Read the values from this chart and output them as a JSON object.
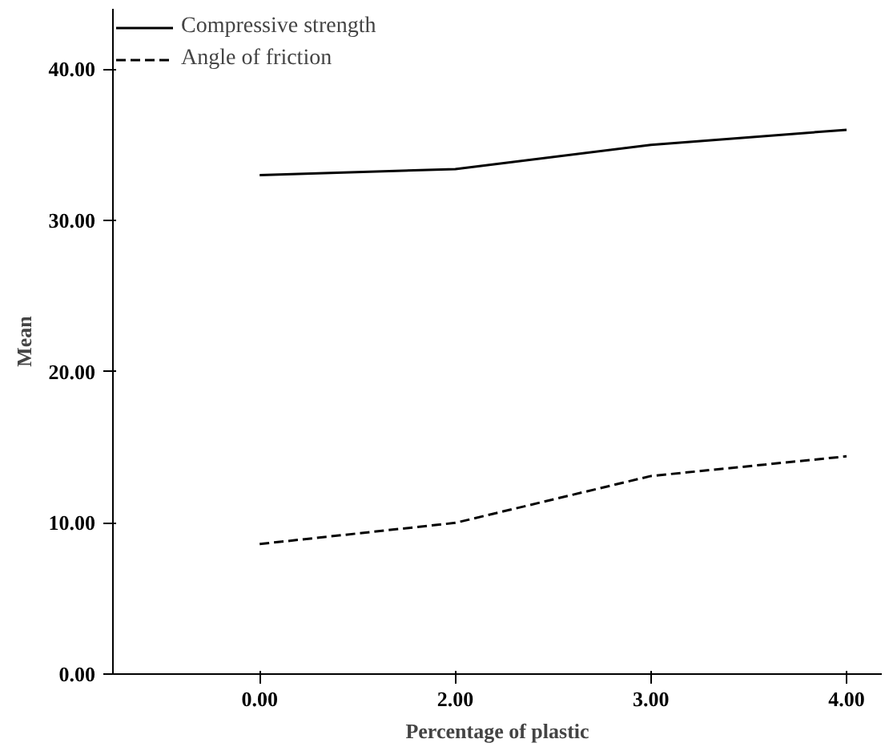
{
  "chart_data": {
    "type": "line",
    "xlabel": "Percentage of plastic",
    "ylabel": "Mean",
    "categories": [
      "0.00",
      "2.00",
      "3.00",
      "4.00"
    ],
    "series": [
      {
        "name": "Compressive strength",
        "color": "#000000",
        "values": [
          33.0,
          33.4,
          35.0,
          36.0
        ],
        "line_style": "solid"
      },
      {
        "name": "Angle of friction",
        "color": "#000000",
        "values": [
          8.6,
          10.0,
          13.1,
          14.4
        ],
        "line_style": "dashed"
      }
    ],
    "ylim": [
      0,
      44
    ],
    "yticks": [
      {
        "value": 0,
        "label": "0.00"
      },
      {
        "value": 10,
        "label": "10.00"
      },
      {
        "value": 20,
        "label": "20.00"
      },
      {
        "value": 30,
        "label": "30.00"
      },
      {
        "value": 40,
        "label": "40.00"
      }
    ],
    "grid": false,
    "legend": "top left",
    "marker": "none"
  }
}
